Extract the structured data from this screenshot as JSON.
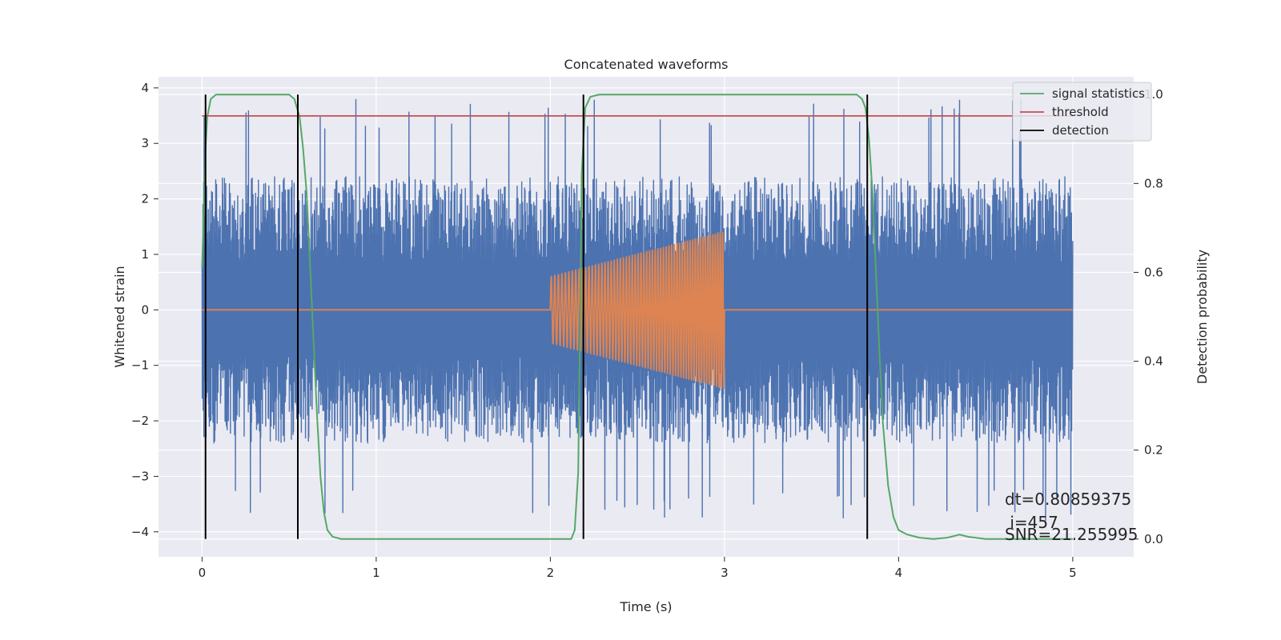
{
  "chart_data": {
    "type": "line",
    "title": "Concatenated waveforms",
    "xlabel": "Time (s)",
    "ylabel_left": "Whitened strain",
    "ylabel_right": "Detection probability",
    "xlim": [
      -0.25,
      5.35
    ],
    "ylim_left": [
      -4.45,
      4.2
    ],
    "ylim_right": [
      -0.04,
      1.04
    ],
    "x_ticks": [
      0,
      1,
      2,
      3,
      4,
      5
    ],
    "x_tick_labels": [
      "0",
      "1",
      "2",
      "3",
      "4",
      "5"
    ],
    "y_left_ticks": [
      -4,
      -3,
      -2,
      -1,
      0,
      1,
      2,
      3,
      4
    ],
    "y_left_tick_labels": [
      "−4",
      "−3",
      "−2",
      "−1",
      "0",
      "1",
      "2",
      "3",
      "4"
    ],
    "y_right_ticks": [
      0.0,
      0.2,
      0.4,
      0.6,
      0.8,
      1.0
    ],
    "y_right_tick_labels": [
      "0.0",
      "0.2",
      "0.4",
      "0.6",
      "0.8",
      "1.0"
    ],
    "grid": true,
    "legend_position": "top-right",
    "series": [
      {
        "name": "",
        "kind": "noise_strain",
        "axis": "left",
        "color": "#4c72b0",
        "x_range": [
          0,
          5
        ],
        "typical_amplitude": 2.4,
        "peak_amplitude": 3.8,
        "peak_min": -4.1
      },
      {
        "name": "",
        "kind": "injected_chirp",
        "axis": "left",
        "color": "#dd8452",
        "start": 2.0,
        "end": 3.0,
        "amplitude_start": 0.6,
        "amplitude_end": 1.42,
        "cycles": 60
      },
      {
        "name": "signal statistics",
        "axis": "right",
        "color": "#55a868",
        "points": [
          [
            0,
            0.61
          ],
          [
            0.01,
            0.75
          ],
          [
            0.02,
            0.88
          ],
          [
            0.03,
            0.95
          ],
          [
            0.05,
            0.99
          ],
          [
            0.08,
            1.0
          ],
          [
            0.5,
            1.0
          ],
          [
            0.53,
            0.99
          ],
          [
            0.56,
            0.95
          ],
          [
            0.58,
            0.88
          ],
          [
            0.6,
            0.78
          ],
          [
            0.62,
            0.62
          ],
          [
            0.64,
            0.45
          ],
          [
            0.66,
            0.28
          ],
          [
            0.68,
            0.14
          ],
          [
            0.7,
            0.06
          ],
          [
            0.72,
            0.02
          ],
          [
            0.75,
            0.005
          ],
          [
            0.8,
            0.0
          ],
          [
            2.12,
            0.0
          ],
          [
            2.14,
            0.02
          ],
          [
            2.16,
            0.15
          ],
          [
            2.17,
            0.45
          ],
          [
            2.18,
            0.82
          ],
          [
            2.2,
            0.97
          ],
          [
            2.23,
            0.995
          ],
          [
            2.28,
            1.0
          ],
          [
            3.76,
            1.0
          ],
          [
            3.79,
            0.99
          ],
          [
            3.81,
            0.97
          ],
          [
            3.83,
            0.9
          ],
          [
            3.85,
            0.78
          ],
          [
            3.87,
            0.6
          ],
          [
            3.89,
            0.42
          ],
          [
            3.91,
            0.26
          ],
          [
            3.94,
            0.12
          ],
          [
            3.97,
            0.05
          ],
          [
            4.0,
            0.02
          ],
          [
            4.05,
            0.01
          ],
          [
            4.12,
            0.003
          ],
          [
            4.2,
            0.0
          ],
          [
            4.28,
            0.003
          ],
          [
            4.35,
            0.01
          ],
          [
            4.4,
            0.005
          ],
          [
            4.5,
            0.0
          ],
          [
            5.0,
            0.0
          ]
        ]
      },
      {
        "name": "threshold",
        "axis": "right",
        "color": "#c44e52",
        "y": 0.952,
        "x_range": [
          0,
          5
        ]
      },
      {
        "name": "detection",
        "axis": "right",
        "color": "#000000",
        "x": [
          0.02,
          0.55,
          2.19,
          3.82
        ],
        "y_range": [
          0.0,
          1.0
        ]
      }
    ],
    "annotations": [
      "dt=0.80859375",
      " i=457",
      "SNR=21.255995"
    ]
  }
}
